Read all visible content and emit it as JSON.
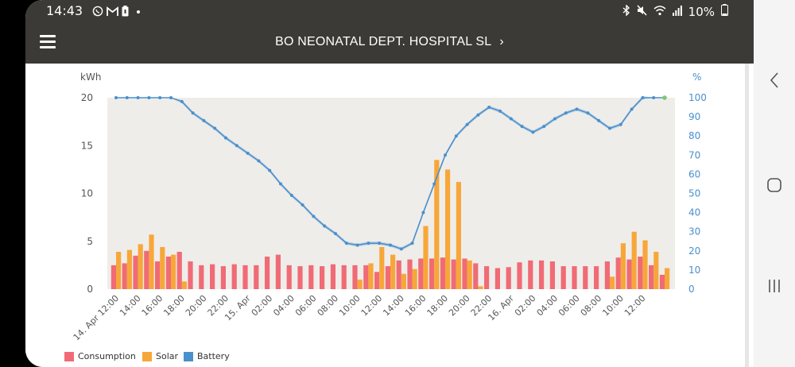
{
  "status_bar": {
    "time": "14:43",
    "battery": "10%",
    "left_icons": [
      "whatsapp-icon",
      "gmail-icon",
      "battery-saver-icon",
      "dot-icon"
    ],
    "right_icons": [
      "bluetooth-icon",
      "mute-icon",
      "wifi-icon",
      "signal-icon",
      "battery-icon"
    ]
  },
  "app_bar": {
    "title": "BO NEONATAL DEPT. HOSPITAL SL",
    "chevron": "›"
  },
  "legend": [
    {
      "label": "Consumption",
      "color": "#f06b75"
    },
    {
      "label": "Solar",
      "color": "#f7a73a"
    },
    {
      "label": "Battery",
      "color": "#4a90cc"
    }
  ],
  "colors": {
    "consumption": "#f06b75",
    "solar": "#f7a73a",
    "battery": "#4a90cc",
    "plot_bg": "#efedea",
    "header": "#3b3a36"
  },
  "chart_data": {
    "type": "bar",
    "left_axis": {
      "label": "kWh",
      "min": 0,
      "max": 20,
      "ticks": [
        "0",
        "5",
        "10",
        "15",
        "20"
      ]
    },
    "right_axis": {
      "label": "%",
      "min": 0,
      "max": 100,
      "ticks": [
        "0",
        "10",
        "20",
        "30",
        "40",
        "50",
        "60",
        "70",
        "80",
        "90",
        "100"
      ]
    },
    "x_labels": [
      "14. Apr 12:00",
      "14:00",
      "16:00",
      "18:00",
      "20:00",
      "22:00",
      "15. Apr",
      "02:00",
      "04:00",
      "06:00",
      "08:00",
      "10:00",
      "12:00",
      "14:00",
      "16:00",
      "18:00",
      "20:00",
      "22:00",
      "16. Apr",
      "02:00",
      "04:00",
      "06:00",
      "08:00",
      "10:00",
      "12:00"
    ],
    "series": [
      {
        "name": "Consumption",
        "axis": "left",
        "values": [
          2.5,
          2.7,
          3.5,
          4.0,
          2.9,
          3.4,
          3.9,
          2.9,
          2.5,
          2.6,
          2.4,
          2.6,
          2.5,
          2.5,
          3.4,
          3.6,
          2.5,
          2.4,
          2.5,
          2.4,
          2.6,
          2.5,
          2.5,
          2.5,
          1.8,
          2.4,
          3.0,
          3.1,
          3.2,
          3.2,
          3.3,
          3.1,
          3.2,
          2.7,
          2.4,
          2.2,
          2.3,
          2.8,
          3.0,
          3.0,
          2.9,
          2.4,
          2.4,
          2.4,
          2.4,
          2.9,
          3.3,
          3.1,
          3.4,
          2.5,
          1.5
        ]
      },
      {
        "name": "Solar",
        "axis": "left",
        "values": [
          3.9,
          4.1,
          4.7,
          5.7,
          4.4,
          3.6,
          0.8,
          0,
          0,
          0,
          0,
          0,
          0,
          0,
          0,
          0,
          0,
          0,
          0,
          0,
          0,
          0,
          1.0,
          2.7,
          4.4,
          3.6,
          1.6,
          2.1,
          6.6,
          13.5,
          12.5,
          11.2,
          3.0,
          0.3,
          0,
          0,
          0,
          0,
          0,
          0,
          0,
          0,
          0,
          0,
          0,
          1.3,
          4.8,
          6.0,
          5.1,
          3.9,
          2.2
        ]
      },
      {
        "name": "Battery",
        "axis": "right",
        "values": [
          100,
          100,
          100,
          100,
          100,
          100,
          98,
          92,
          88,
          84,
          79,
          75,
          71,
          67,
          62,
          55,
          49,
          44,
          38,
          33,
          29,
          24,
          23,
          24,
          24,
          23,
          21,
          24,
          40,
          55,
          70,
          80,
          86,
          91,
          95,
          93,
          89,
          85,
          82,
          85,
          89,
          92,
          94,
          92,
          88,
          84,
          86,
          94,
          100,
          100,
          100
        ]
      }
    ]
  }
}
